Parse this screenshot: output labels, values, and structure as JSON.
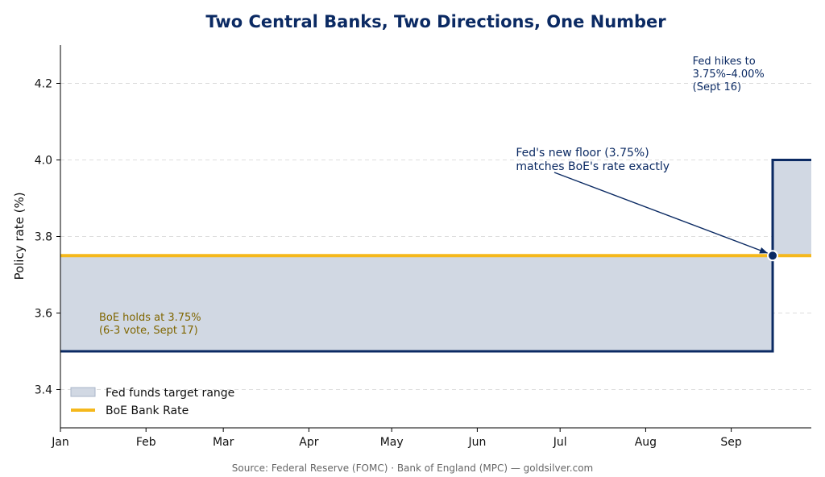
{
  "chart_data": {
    "type": "area",
    "title": "Two Central Banks, Two Directions, One Number",
    "xlabel": "",
    "ylabel": "Policy rate (%)",
    "ylim": [
      3.3,
      4.3
    ],
    "xlim": [
      "2025-01-01",
      "2025-09-30"
    ],
    "x_ticks": [
      "Jan",
      "Feb",
      "Mar",
      "Apr",
      "May",
      "Jun",
      "Jul",
      "Aug",
      "Sep"
    ],
    "x_tick_dates": [
      "2025-01-01",
      "2025-02-01",
      "2025-03-01",
      "2025-04-01",
      "2025-05-01",
      "2025-06-01",
      "2025-07-01",
      "2025-08-01",
      "2025-09-01"
    ],
    "y_ticks": [
      3.4,
      3.6,
      3.8,
      4.0,
      4.2
    ],
    "y_tick_labels": [
      "3.4",
      "3.6",
      "3.8",
      "4.0",
      "4.2"
    ],
    "grid": "horizontal dashed",
    "legend_position": "lower-left",
    "series": [
      {
        "name": "Fed funds target range",
        "kind": "band",
        "color": "#0b2a63",
        "fill": "#d1d8e3",
        "segments": [
          {
            "from": "2025-01-01",
            "to": "2025-09-16",
            "lower": 3.5,
            "upper": 3.75
          },
          {
            "from": "2025-09-16",
            "to": "2025-09-30",
            "lower": 3.75,
            "upper": 4.0
          }
        ]
      },
      {
        "name": "BoE Bank Rate",
        "kind": "line",
        "color": "#f5b81c",
        "points": [
          {
            "x": "2025-01-01",
            "y": 3.75
          },
          {
            "x": "2025-09-30",
            "y": 3.75
          }
        ]
      }
    ],
    "annotations": [
      {
        "lines": [
          "Fed hikes to",
          "3.75%–4.00%",
          "(Sept 16)"
        ],
        "x": "2025-08-18",
        "y": 4.25,
        "color": "#0b2a63"
      },
      {
        "lines": [
          "Fed's new floor (3.75%)",
          "matches BoE's rate exactly"
        ],
        "x": "2025-06-15",
        "y": 4.01,
        "arrow_to": {
          "x": "2025-09-16",
          "y": 3.75
        },
        "color": "#0b2a63"
      },
      {
        "lines": [
          "BoE holds at 3.75%",
          "(6-3 vote, Sept 17)"
        ],
        "x": "2025-01-15",
        "y": 3.58,
        "color": "#806600"
      }
    ],
    "marker": {
      "x": "2025-09-16",
      "y": 3.75
    },
    "source": "Source: Federal Reserve (FOMC) · Bank of England (MPC) — goldsilver.com"
  }
}
